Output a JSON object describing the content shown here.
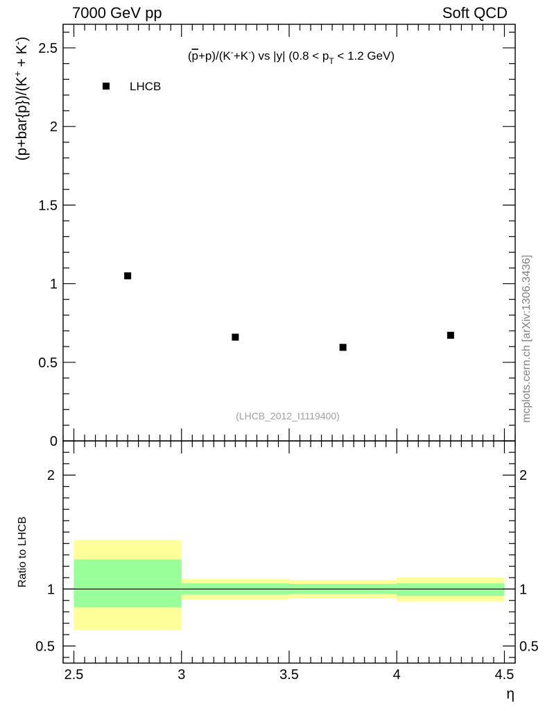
{
  "header": {
    "left": "7000 GeV pp",
    "right": "Soft QCD"
  },
  "side_label": "mcplots.cern.ch [arXiv:1306.3436]",
  "chart_data": [
    {
      "type": "scatter",
      "panel": "main",
      "title_parts": {
        "pre": "(",
        "pbar": "p",
        "mid": "+p)/(K",
        "sup1": "-",
        "mid2": "+K",
        "sup2": "-",
        "mid3": ") vs |y| (0.8 < p",
        "sub": "T",
        "post": " < 1.2 GeV)"
      },
      "ylabel_parts": {
        "main": "(p+bar{p})/(K",
        "sup1": "+",
        "mid": " + K",
        "sup2": "-",
        "post": ")"
      },
      "ylim": [
        0,
        2.65
      ],
      "yticks": [
        {
          "value": 0,
          "label": "0"
        },
        {
          "value": 0.5,
          "label": "0.5"
        },
        {
          "value": 1,
          "label": "1"
        },
        {
          "value": 1.5,
          "label": "1.5"
        },
        {
          "value": 2,
          "label": "2"
        },
        {
          "value": 2.5,
          "label": "2.5"
        }
      ],
      "series": [
        {
          "name": "LHCB",
          "color": "#000000",
          "x": [
            2.75,
            3.25,
            3.75,
            4.25
          ],
          "y": [
            1.05,
            0.66,
            0.595,
            0.672
          ]
        }
      ],
      "legend_position": "top-left",
      "annotation": "(LHCB_2012_I1119400)"
    },
    {
      "type": "area",
      "panel": "ratio",
      "ylabel": "Ratio to LHCB",
      "xlabel": "η",
      "xlim": [
        2.45,
        4.55
      ],
      "ylim": [
        0.35,
        2.3
      ],
      "xticks": [
        {
          "value": 2.5,
          "label": "2.5"
        },
        {
          "value": 3,
          "label": "3"
        },
        {
          "value": 3.5,
          "label": "3.5"
        },
        {
          "value": 4,
          "label": "4"
        },
        {
          "value": 4.5,
          "label": "4.5"
        }
      ],
      "yticks": [
        {
          "value": 0.5,
          "label": "0.5"
        },
        {
          "value": 1,
          "label": "1"
        },
        {
          "value": 2,
          "label": "2"
        }
      ],
      "reference_line": 1,
      "bins": [
        {
          "x0": 2.5,
          "x1": 3.0,
          "outer": [
            0.64,
            1.43
          ],
          "inner": [
            0.84,
            1.26
          ]
        },
        {
          "x0": 3.0,
          "x1": 3.5,
          "outer": [
            0.91,
            1.09
          ],
          "inner": [
            0.95,
            1.05
          ]
        },
        {
          "x0": 3.5,
          "x1": 4.0,
          "outer": [
            0.92,
            1.08
          ],
          "inner": [
            0.955,
            1.045
          ]
        },
        {
          "x0": 4.0,
          "x1": 4.5,
          "outer": [
            0.89,
            1.1
          ],
          "inner": [
            0.94,
            1.05
          ]
        }
      ],
      "colors": {
        "outer": "#ffff99",
        "inner": "#99ff99"
      }
    }
  ]
}
